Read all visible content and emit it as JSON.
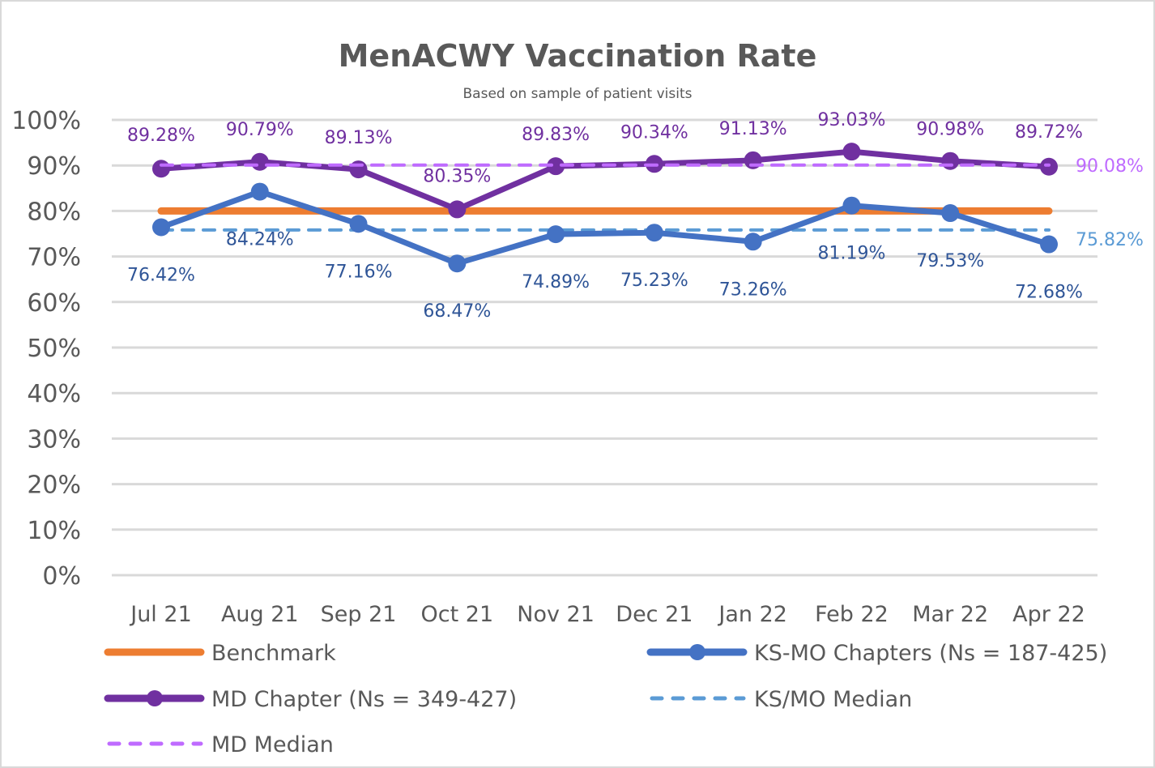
{
  "chart_data": {
    "type": "line",
    "title": "MenACWY Vaccination Rate",
    "subtitle": "Based on sample of patient visits",
    "xlabel": "",
    "ylabel": "",
    "categories": [
      "Jul 21",
      "Aug 21",
      "Sep 21",
      "Oct 21",
      "Nov 21",
      "Dec 21",
      "Jan 22",
      "Feb 22",
      "Mar 22",
      "Apr 22"
    ],
    "ylim": [
      0,
      100
    ],
    "yticks": [
      0,
      10,
      20,
      30,
      40,
      50,
      60,
      70,
      80,
      90,
      100
    ],
    "ytick_labels": [
      "0%",
      "10%",
      "20%",
      "30%",
      "40%",
      "50%",
      "60%",
      "70%",
      "80%",
      "90%",
      "100%"
    ],
    "grid": true,
    "legend_position": "bottom",
    "series": [
      {
        "name": "Benchmark",
        "key": "benchmark",
        "color": "#ED7D31",
        "style": "solid",
        "markers": false,
        "values": [
          80,
          80,
          80,
          80,
          80,
          80,
          80,
          80,
          80,
          80
        ]
      },
      {
        "name": "KS-MO Chapters (Ns = 187-425)",
        "key": "ksmo",
        "color": "#4472C4",
        "label_color": "#2F5597",
        "style": "solid",
        "markers": true,
        "values": [
          76.42,
          84.24,
          77.16,
          68.47,
          74.89,
          75.23,
          73.26,
          81.19,
          79.53,
          72.68
        ],
        "labels": [
          "76.42%",
          "84.24%",
          "77.16%",
          "68.47%",
          "74.89%",
          "75.23%",
          "73.26%",
          "81.19%",
          "79.53%",
          "72.68%"
        ]
      },
      {
        "name": "MD Chapter (Ns = 349-427)",
        "key": "md",
        "color": "#7030A0",
        "label_color": "#7030A0",
        "style": "solid",
        "markers": true,
        "values": [
          89.28,
          90.79,
          89.13,
          80.35,
          89.83,
          90.34,
          91.13,
          93.03,
          90.98,
          89.72
        ],
        "labels": [
          "89.28%",
          "90.79%",
          "89.13%",
          "80.35%",
          "89.83%",
          "90.34%",
          "91.13%",
          "93.03%",
          "90.98%",
          "89.72%"
        ]
      },
      {
        "name": "KS/MO Median",
        "key": "ksmo_median",
        "color": "#5B9BD5",
        "style": "dashed",
        "markers": false,
        "values": [
          75.82,
          75.82,
          75.82,
          75.82,
          75.82,
          75.82,
          75.82,
          75.82,
          75.82,
          75.82
        ],
        "end_label": "75.82%"
      },
      {
        "name": "MD Median",
        "key": "md_median",
        "color": "#BF6BFF",
        "style": "dashed",
        "markers": false,
        "values": [
          90.08,
          90.08,
          90.08,
          90.08,
          90.08,
          90.08,
          90.08,
          90.08,
          90.08,
          90.08
        ],
        "end_label": "90.08%"
      }
    ],
    "legend": [
      {
        "name": "Benchmark",
        "key": "benchmark"
      },
      {
        "name": "KS-MO Chapters (Ns = 187-425)",
        "key": "ksmo"
      },
      {
        "name": "MD Chapter (Ns = 349-427)",
        "key": "md"
      },
      {
        "name": "KS/MO Median",
        "key": "ksmo_median"
      },
      {
        "name": "MD Median",
        "key": "md_median"
      }
    ]
  }
}
